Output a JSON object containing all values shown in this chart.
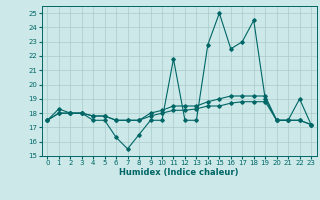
{
  "title": "",
  "xlabel": "Humidex (Indice chaleur)",
  "background_color": "#cce8e8",
  "grid_color": "#aacccc",
  "line_color": "#006666",
  "xlim": [
    -0.5,
    23.5
  ],
  "ylim": [
    15,
    25.5
  ],
  "yticks": [
    15,
    16,
    17,
    18,
    19,
    20,
    21,
    22,
    23,
    24,
    25
  ],
  "xticks": [
    0,
    1,
    2,
    3,
    4,
    5,
    6,
    7,
    8,
    9,
    10,
    11,
    12,
    13,
    14,
    15,
    16,
    17,
    18,
    19,
    20,
    21,
    22,
    23
  ],
  "series": [
    [
      17.5,
      18.3,
      18.0,
      18.0,
      17.5,
      17.5,
      16.3,
      15.5,
      16.5,
      17.5,
      17.5,
      21.8,
      17.5,
      17.5,
      22.8,
      25.0,
      22.5,
      23.0,
      24.5,
      19.0,
      17.5,
      17.5,
      19.0,
      17.2
    ],
    [
      17.5,
      18.0,
      18.0,
      18.0,
      17.8,
      17.8,
      17.5,
      17.5,
      17.5,
      18.0,
      18.2,
      18.5,
      18.5,
      18.5,
      18.8,
      19.0,
      19.2,
      19.2,
      19.2,
      19.2,
      17.5,
      17.5,
      17.5,
      17.2
    ],
    [
      17.5,
      18.0,
      18.0,
      18.0,
      17.8,
      17.8,
      17.5,
      17.5,
      17.5,
      17.8,
      18.0,
      18.2,
      18.2,
      18.3,
      18.5,
      18.5,
      18.7,
      18.8,
      18.8,
      18.8,
      17.5,
      17.5,
      17.5,
      17.2
    ]
  ]
}
